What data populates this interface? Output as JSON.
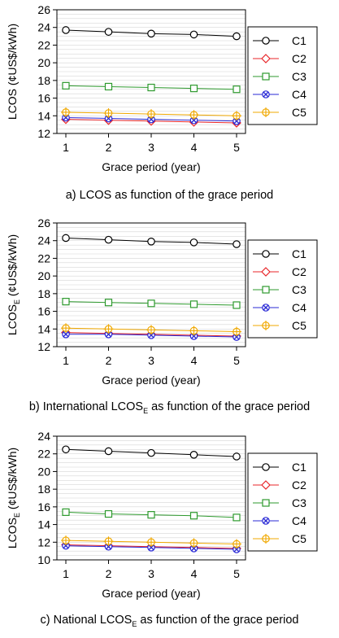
{
  "chart_data": [
    {
      "type": "line",
      "x": [
        1,
        2,
        3,
        4,
        5
      ],
      "xlabel": "Grace period (year)",
      "ylabel": "LCOS (¢US$/kWh)",
      "ylabel_main": "LCOS (¢US$/kWh)",
      "ylabel_sub": "",
      "ylabel_tail": "",
      "ylim": [
        12,
        26
      ],
      "yticks": [
        12,
        14,
        16,
        18,
        20,
        22,
        24,
        26
      ],
      "xticks": [
        1,
        2,
        3,
        4,
        5
      ],
      "grid": true,
      "legend": "right",
      "series": [
        {
          "name": "C1",
          "values": [
            23.7,
            23.5,
            23.3,
            23.2,
            23.0
          ]
        },
        {
          "name": "C2",
          "values": [
            13.6,
            13.5,
            13.4,
            13.3,
            13.2
          ]
        },
        {
          "name": "C3",
          "values": [
            17.4,
            17.3,
            17.2,
            17.1,
            17.0
          ]
        },
        {
          "name": "C4",
          "values": [
            13.8,
            13.7,
            13.6,
            13.5,
            13.4
          ]
        },
        {
          "name": "C5",
          "values": [
            14.4,
            14.3,
            14.2,
            14.1,
            14.0
          ]
        }
      ]
    },
    {
      "type": "line",
      "x": [
        1,
        2,
        3,
        4,
        5
      ],
      "xlabel": "Grace period (year)",
      "ylabel": "LCOSE (¢US$/kWh)",
      "ylabel_main": "LCOS",
      "ylabel_sub": "E",
      "ylabel_tail": " (¢US$/kWh)",
      "ylim": [
        12,
        26
      ],
      "yticks": [
        12,
        14,
        16,
        18,
        20,
        22,
        24,
        26
      ],
      "xticks": [
        1,
        2,
        3,
        4,
        5
      ],
      "grid": true,
      "legend": "right",
      "series": [
        {
          "name": "C1",
          "values": [
            24.3,
            24.1,
            23.9,
            23.8,
            23.6
          ]
        },
        {
          "name": "C2",
          "values": [
            13.6,
            13.5,
            13.4,
            13.3,
            13.2
          ]
        },
        {
          "name": "C3",
          "values": [
            17.1,
            17.0,
            16.9,
            16.8,
            16.7
          ]
        },
        {
          "name": "C4",
          "values": [
            13.4,
            13.4,
            13.3,
            13.2,
            13.1
          ]
        },
        {
          "name": "C5",
          "values": [
            14.1,
            14.0,
            13.9,
            13.8,
            13.7
          ]
        }
      ]
    },
    {
      "type": "line",
      "x": [
        1,
        2,
        3,
        4,
        5
      ],
      "xlabel": "Grace period (year)",
      "ylabel": "LCOSE (¢US$/kWh)",
      "ylabel_main": "LCOS",
      "ylabel_sub": "E",
      "ylabel_tail": " (¢US$/kWh)",
      "ylim": [
        10,
        24
      ],
      "yticks": [
        10,
        12,
        14,
        16,
        18,
        20,
        22,
        24
      ],
      "xticks": [
        1,
        2,
        3,
        4,
        5
      ],
      "grid": true,
      "legend": "right",
      "series": [
        {
          "name": "C1",
          "values": [
            22.5,
            22.3,
            22.1,
            21.9,
            21.7
          ]
        },
        {
          "name": "C2",
          "values": [
            11.7,
            11.6,
            11.5,
            11.4,
            11.3
          ]
        },
        {
          "name": "C3",
          "values": [
            15.4,
            15.2,
            15.1,
            15.0,
            14.8
          ]
        },
        {
          "name": "C4",
          "values": [
            11.6,
            11.5,
            11.4,
            11.3,
            11.2
          ]
        },
        {
          "name": "C5",
          "values": [
            12.2,
            12.1,
            12.0,
            11.9,
            11.8
          ]
        }
      ]
    }
  ],
  "series_colors": {
    "C1": "#000000",
    "C2": "#e8262a",
    "C3": "#2e9a2e",
    "C4": "#2a2ad6",
    "C5": "#f0a800"
  },
  "series_markers": {
    "C1": "circle",
    "C2": "diamond",
    "C3": "square",
    "C4": "x-circle",
    "C5": "circle-cross"
  },
  "captions": [
    {
      "main": "a) LCOS as function of the grace period",
      "sub": "",
      "tail": ""
    },
    {
      "main": "b) International LCOS",
      "sub": "E",
      "tail": " as function of the grace period"
    },
    {
      "main": "c) National LCOS",
      "sub": "E",
      "tail": " as function of the grace period"
    }
  ]
}
